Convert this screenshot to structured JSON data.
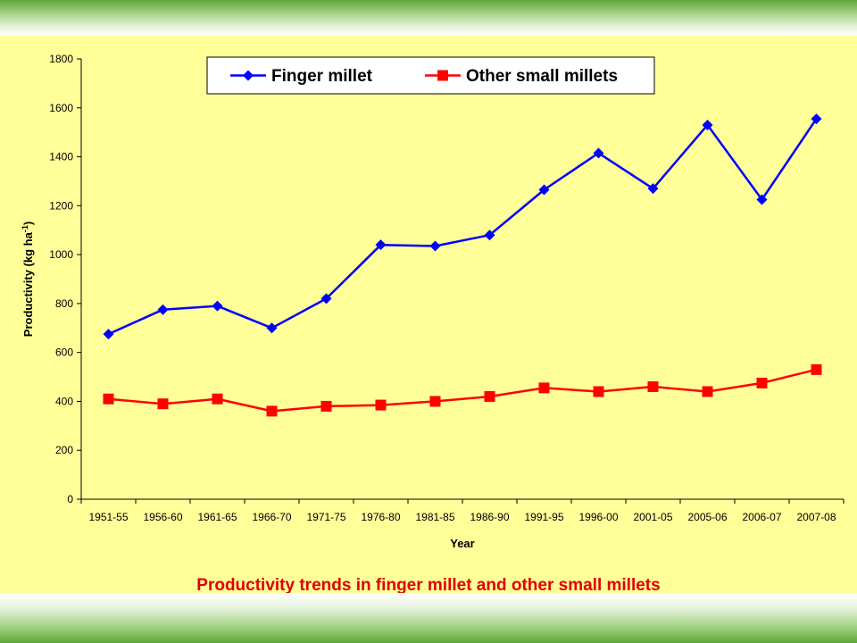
{
  "caption": "Productivity trends in finger millet and other small millets",
  "chart_data": {
    "type": "line",
    "title": "",
    "xlabel": "Year",
    "ylabel": "Productivity (kg ha",
    "ylabel_sup": "-1",
    "ylabel_close": ")",
    "ylim": [
      0,
      1800
    ],
    "yticks": [
      0,
      200,
      400,
      600,
      800,
      1000,
      1200,
      1400,
      1600,
      1800
    ],
    "grid": false,
    "legend": "top-center",
    "categories": [
      "1951-55",
      "1956-60",
      "1961-65",
      "1966-70",
      "1971-75",
      "1976-80",
      "1981-85",
      "1986-90",
      "1991-95",
      "1996-00",
      "2001-05",
      "2005-06",
      "2006-07",
      "2007-08"
    ],
    "series": [
      {
        "name": "Finger millet",
        "color": "#0000ff",
        "marker": "diamond",
        "values": [
          675,
          775,
          790,
          700,
          820,
          1040,
          1035,
          1080,
          1265,
          1415,
          1270,
          1530,
          1225,
          1555
        ]
      },
      {
        "name": "Other small millets",
        "color": "#ff0000",
        "marker": "square",
        "values": [
          410,
          390,
          410,
          360,
          380,
          385,
          400,
          420,
          455,
          440,
          460,
          440,
          475,
          530
        ]
      }
    ]
  }
}
